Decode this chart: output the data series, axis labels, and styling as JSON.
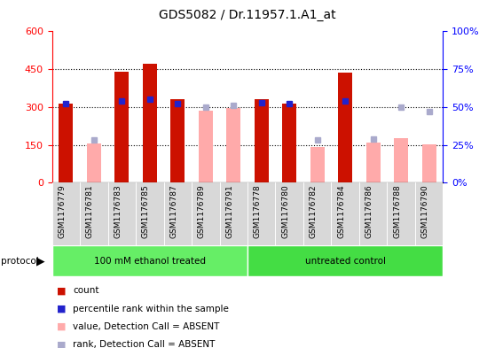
{
  "title": "GDS5082 / Dr.11957.1.A1_at",
  "samples": [
    "GSM1176779",
    "GSM1176781",
    "GSM1176783",
    "GSM1176785",
    "GSM1176787",
    "GSM1176789",
    "GSM1176791",
    "GSM1176778",
    "GSM1176780",
    "GSM1176782",
    "GSM1176784",
    "GSM1176786",
    "GSM1176788",
    "GSM1176790"
  ],
  "count_values": [
    315,
    0,
    440,
    470,
    330,
    0,
    0,
    330,
    315,
    0,
    435,
    0,
    0,
    0
  ],
  "percentile_values": [
    52,
    0,
    54,
    55,
    52,
    0,
    0,
    53,
    52,
    0,
    54,
    0,
    0,
    0
  ],
  "absent_value_values": [
    0,
    155,
    0,
    0,
    0,
    285,
    295,
    0,
    0,
    140,
    0,
    158,
    178,
    153
  ],
  "absent_rank_values": [
    0,
    28,
    0,
    0,
    0,
    50,
    51,
    0,
    0,
    28,
    0,
    29,
    50,
    47
  ],
  "group1_label": "100 mM ethanol treated",
  "group2_label": "untreated control",
  "group1_count": 7,
  "group2_count": 7,
  "ylim_left": [
    0,
    600
  ],
  "ylim_right": [
    0,
    100
  ],
  "yticks_left": [
    0,
    150,
    300,
    450,
    600
  ],
  "yticks_right": [
    0,
    25,
    50,
    75,
    100
  ],
  "color_count": "#cc1100",
  "color_percentile": "#2222cc",
  "color_absent_value": "#ffaaaa",
  "color_absent_rank": "#aaaacc",
  "color_group1": "#66ee66",
  "color_group2": "#44dd44",
  "label_bg": "#d8d8d8"
}
